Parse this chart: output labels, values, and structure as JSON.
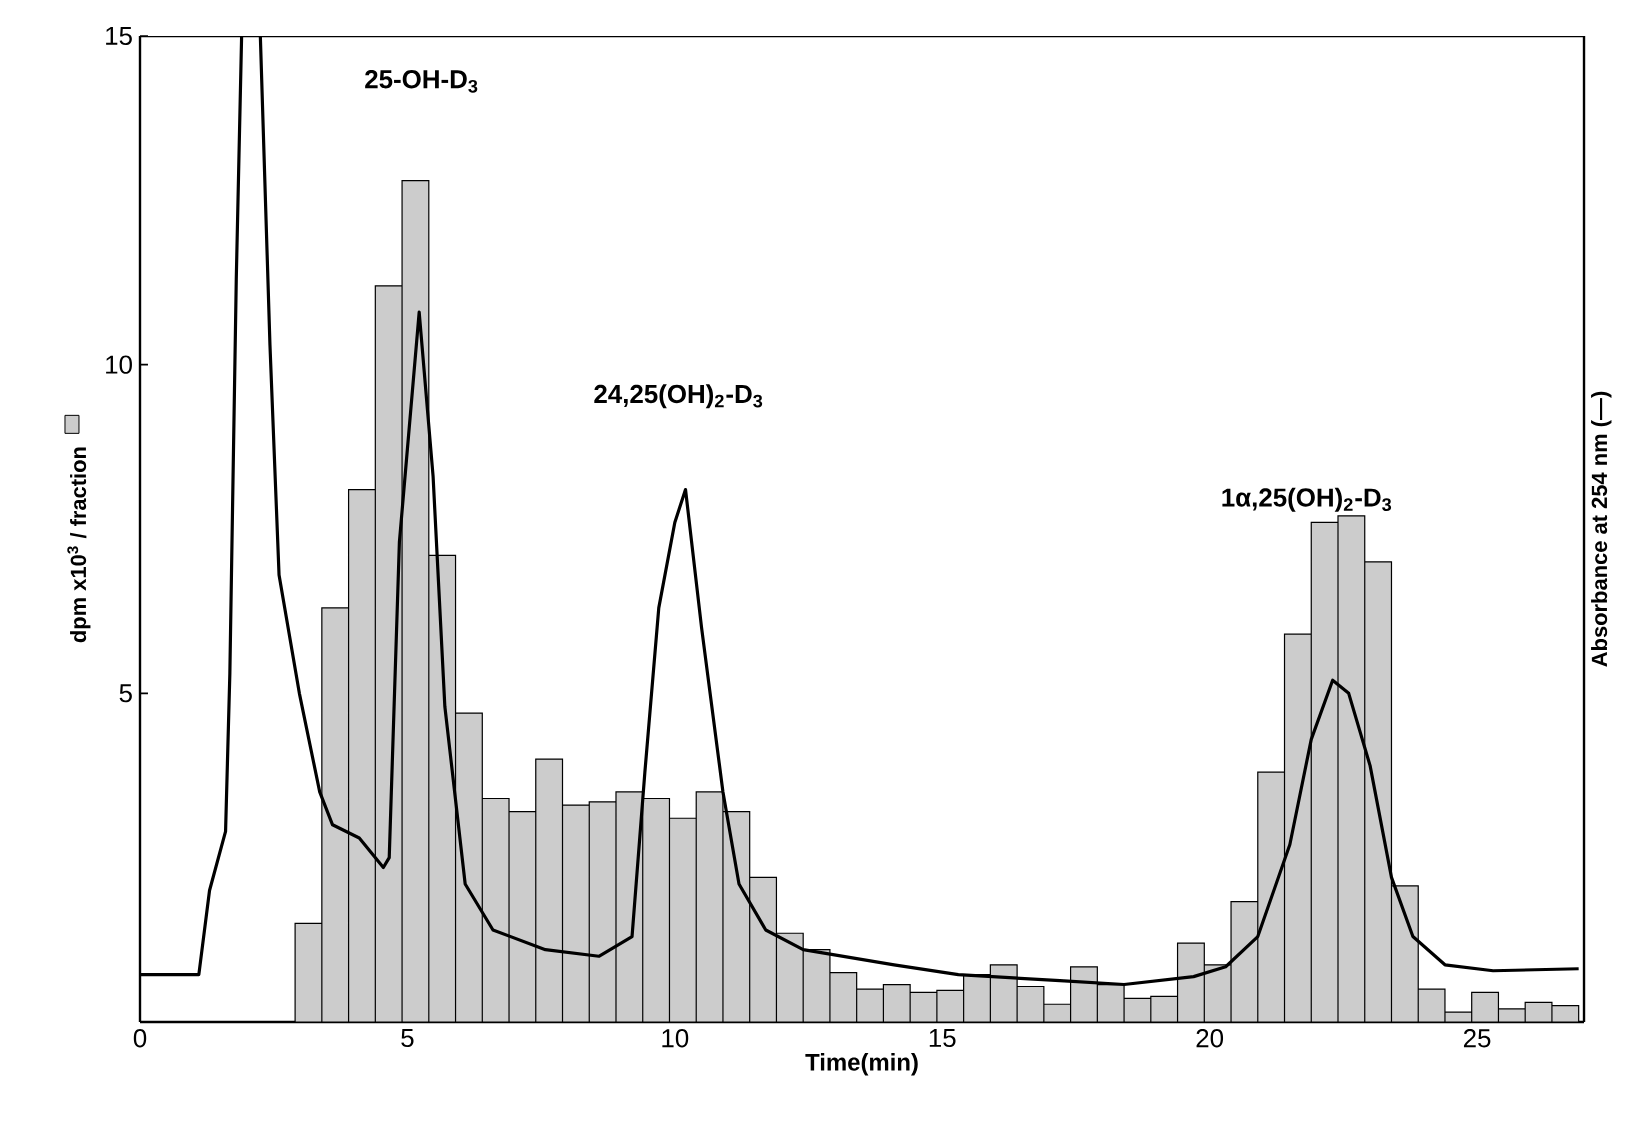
{
  "chart_data": {
    "type": "histogram",
    "xlabel": "Time(min)",
    "ylabel": "dpm x10$^{3}$ / fraction",
    "y2label": "Absorbance  at  254 nm (—)",
    "xlim": [
      0,
      27
    ],
    "xticks": [
      0,
      5,
      10,
      15,
      20,
      25
    ],
    "ylim": [
      0,
      15
    ],
    "yticks": [
      5,
      10,
      15
    ],
    "series": [
      {
        "type": "histogram",
        "color": "#cccccc",
        "bins": [
          2.9,
          3.4,
          3.9,
          4.4,
          4.9,
          5.4,
          5.9,
          6.4,
          6.9,
          7.4,
          7.9,
          8.4,
          8.9,
          9.4,
          9.9,
          10.4,
          10.9,
          11.4,
          11.9,
          12.4,
          12.9,
          13.4,
          13.9,
          14.4,
          14.9,
          15.4,
          15.9,
          16.4,
          16.9,
          17.4,
          17.9,
          18.4,
          18.9,
          19.4,
          19.9,
          20.4,
          20.9,
          21.4,
          21.9,
          22.4,
          22.9,
          23.4,
          23.9,
          24.4,
          24.9,
          25.4,
          25.9,
          26.4,
          26.9
        ],
        "values": [
          1.5,
          6.3,
          8.1,
          11.2,
          12.8,
          7.1,
          4.7,
          3.4,
          3.2,
          4.0,
          3.3,
          3.35,
          3.5,
          3.4,
          3.1,
          3.5,
          3.2,
          2.2,
          1.35,
          1.1,
          0.75,
          0.5,
          0.57,
          0.45,
          0.48,
          0.72,
          0.87,
          0.54,
          0.27,
          0.84,
          0.57,
          0.36,
          0.39,
          1.2,
          0.87,
          1.83,
          3.8,
          5.9,
          7.6,
          7.7,
          7.0,
          2.07,
          0.5,
          0.15,
          0.45,
          0.2,
          0.3,
          0.25
        ]
      },
      {
        "type": "line",
        "color": "#000000",
        "x": [
          0,
          1.1,
          1.3,
          1.6,
          1.68,
          1.8,
          1.9,
          2.1,
          2.25,
          2.43,
          2.6,
          2.98,
          3.36,
          3.6,
          4.1,
          4.55,
          4.66,
          4.85,
          5.22,
          5.48,
          5.7,
          6.08,
          6.6,
          7.58,
          8.58,
          9.2,
          9.44,
          9.7,
          10.0,
          10.2,
          10.5,
          10.9,
          11.2,
          11.7,
          12.4,
          14.1,
          15.3,
          17.2,
          18.4,
          19.7,
          20.3,
          20.9,
          21.5,
          21.9,
          22.3,
          22.6,
          23.0,
          23.4,
          23.8,
          24.4,
          25.3,
          26.9
        ],
        "values": [
          0.72,
          0.72,
          2.0,
          2.9,
          5.3,
          11.3,
          15,
          null,
          15,
          10.3,
          6.8,
          5.0,
          3.5,
          3.0,
          2.8,
          2.35,
          2.5,
          7.3,
          10.8,
          8.3,
          4.8,
          2.1,
          1.4,
          1.1,
          1.0,
          1.3,
          3.8,
          6.3,
          7.6,
          8.1,
          6.0,
          3.5,
          2.1,
          1.4,
          1.1,
          0.87,
          0.72,
          0.63,
          0.57,
          0.69,
          0.84,
          1.3,
          2.7,
          4.3,
          5.2,
          5.0,
          3.9,
          2.2,
          1.3,
          0.87,
          0.78,
          0.81
        ]
      }
    ],
    "annotations": [
      "25-OH-D$_{3}$",
      "24,25(OH)$_{2}$-D$_{3}$",
      "1α,25(OH)$_{2}$-D$_{3}$"
    ]
  }
}
